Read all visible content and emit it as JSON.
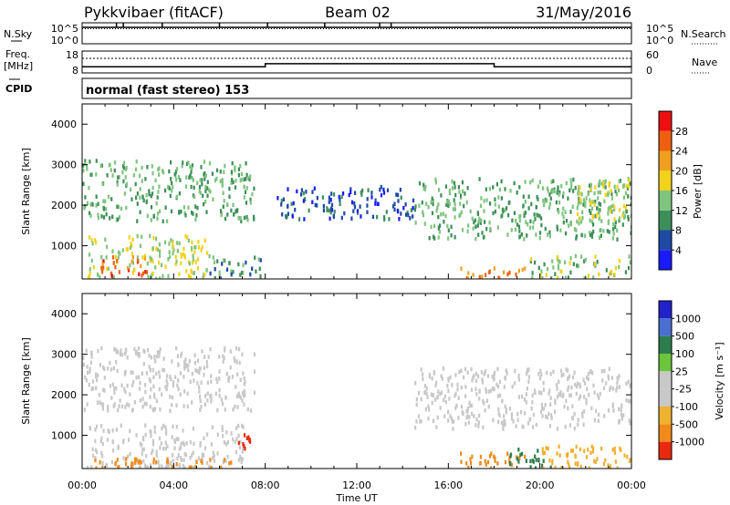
{
  "header": {
    "radar": "Pykkvibaer (fitACF)",
    "beam": "Beam 02",
    "date": "31/May/2016"
  },
  "param_labels": {
    "nsky": "N.Sky",
    "nsearch": "N.Search",
    "freq_line1": "Freq.",
    "freq_line2": "[MHz]",
    "nave": "Nave",
    "cpid": "CPID"
  },
  "noise_panel": {
    "left_ticks": [
      "10^5",
      "10^0"
    ],
    "right_ticks": [
      "10^5",
      "10^0"
    ]
  },
  "freq_panel": {
    "left_ticks": [
      "18",
      "8"
    ],
    "right_ticks": [
      "60",
      "0"
    ]
  },
  "cpid_text": "normal (fast stereo) 153",
  "x_axis": {
    "label": "Time UT",
    "ticks": [
      "00:00",
      "04:00",
      "08:00",
      "12:00",
      "16:00",
      "20:00",
      "00:00"
    ]
  },
  "colors": {
    "power_scale": [
      "#1a1aff",
      "#1f4aa6",
      "#3d8f5a",
      "#7fc47f",
      "#f2d21b",
      "#f0a020",
      "#ee6010",
      "#ee1010"
    ],
    "velocity_scale": [
      "#2222cc",
      "#4a6fd0",
      "#2e7d4f",
      "#6cc43c",
      "#c8c8c8",
      "#f0b030",
      "#f08a1a",
      "#ea2a10"
    ]
  },
  "chart_data": [
    {
      "type": "line",
      "name": "noise-sky-search",
      "x_unit": "hours UT",
      "y_scale": "log",
      "ylim": [
        1,
        100000
      ],
      "series": [
        {
          "name": "N.Sky",
          "style": "solid",
          "x": [
            0,
            24
          ],
          "y": [
            8000,
            8000
          ],
          "spikes_x": [
            1.5,
            1.8,
            3.5,
            6.0,
            8.1,
            10.6,
            13.0,
            13.5
          ]
        },
        {
          "name": "N.Search",
          "style": "dotted",
          "x": [
            0,
            24
          ],
          "y": [
            8000,
            8000
          ]
        }
      ]
    },
    {
      "type": "line",
      "name": "frequency-nave",
      "x_unit": "hours UT",
      "series": [
        {
          "name": "Freq. [MHz]",
          "style": "solid",
          "ylim": [
            8,
            18
          ],
          "x": [
            0,
            8.0,
            8.0,
            18.0,
            18.0,
            24
          ],
          "y": [
            10.8,
            10.8,
            12.2,
            12.2,
            10.8,
            10.8
          ]
        },
        {
          "name": "Nave",
          "style": "dotted",
          "ylim": [
            0,
            60
          ],
          "x": [
            0,
            24
          ],
          "y": [
            40,
            40
          ]
        }
      ]
    },
    {
      "type": "heatmap",
      "name": "power",
      "xlabel": "",
      "ylabel": "Slant Range [km]",
      "x_unit": "hours UT",
      "xlim": [
        0,
        24
      ],
      "ylim": [
        180,
        4500
      ],
      "y_ticks": [
        1000,
        2000,
        3000,
        4000
      ],
      "colorbar": {
        "label": "Power [dB]",
        "ticks": [
          4,
          8,
          12,
          16,
          20,
          24,
          28
        ],
        "range": [
          0,
          32
        ]
      },
      "echo_regions": [
        {
          "t0": 0.0,
          "t1": 7.5,
          "r0": 1650,
          "r1": 3150,
          "level": 12
        },
        {
          "t0": 0.2,
          "t1": 5.5,
          "r0": 230,
          "r1": 1300,
          "level": 16
        },
        {
          "t0": 0.8,
          "t1": 2.8,
          "r0": 300,
          "r1": 800,
          "level": 26
        },
        {
          "t0": 5.5,
          "t1": 7.8,
          "r0": 230,
          "r1": 800,
          "level": 10
        },
        {
          "t0": 14.5,
          "t1": 24.0,
          "r0": 1200,
          "r1": 2700,
          "level": 12
        },
        {
          "t0": 21.5,
          "t1": 24.0,
          "r0": 1700,
          "r1": 2700,
          "level": 16
        },
        {
          "t0": 16.5,
          "t1": 19.5,
          "r0": 230,
          "r1": 500,
          "level": 24
        },
        {
          "t0": 19.5,
          "t1": 24.0,
          "r0": 230,
          "r1": 800,
          "level": 14
        },
        {
          "t0": 8.5,
          "t1": 14.5,
          "r0": 1700,
          "r1": 2500,
          "level": 6
        }
      ]
    },
    {
      "type": "heatmap",
      "name": "velocity",
      "xlabel": "Time UT",
      "ylabel": "Slant Range [km]",
      "x_unit": "hours UT",
      "xlim": [
        0,
        24
      ],
      "ylim": [
        180,
        4500
      ],
      "y_ticks": [
        1000,
        2000,
        3000,
        4000
      ],
      "colorbar": {
        "label": "Velocity [m s⁻¹]",
        "ticks": [
          1000,
          500,
          100,
          25,
          -25,
          -100,
          -500,
          -1000
        ]
      },
      "echo_regions": [
        {
          "t0": 0.0,
          "t1": 7.5,
          "r0": 1650,
          "r1": 3200,
          "level": 0
        },
        {
          "t0": 0.2,
          "t1": 7.0,
          "r0": 230,
          "r1": 1300,
          "level": 0
        },
        {
          "t0": 0.5,
          "t1": 6.5,
          "r0": 230,
          "r1": 500,
          "level": -150
        },
        {
          "t0": 6.8,
          "t1": 7.6,
          "r0": 650,
          "r1": 1150,
          "level": -900
        },
        {
          "t0": 14.5,
          "t1": 24.0,
          "r0": 1200,
          "r1": 2700,
          "level": 0
        },
        {
          "t0": 16.5,
          "t1": 19.5,
          "r0": 230,
          "r1": 600,
          "level": -300
        },
        {
          "t0": 18.5,
          "t1": 20.5,
          "r0": 230,
          "r1": 700,
          "level": 60
        },
        {
          "t0": 20.0,
          "t1": 24.0,
          "r0": 230,
          "r1": 800,
          "level": -60
        }
      ]
    }
  ]
}
